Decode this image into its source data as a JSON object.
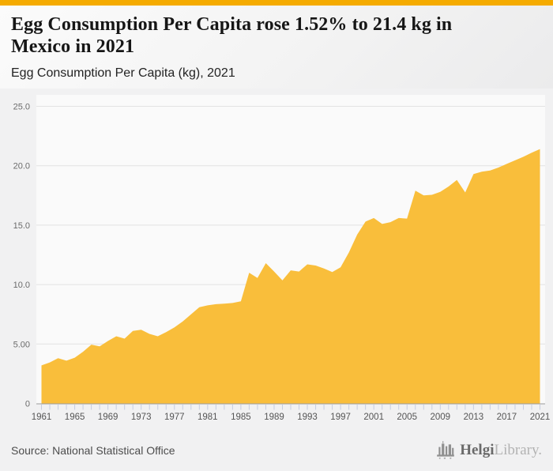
{
  "page": {
    "title": "Egg Consumption Per Capita rose 1.52% to 21.4 kg in\nMexico in 2021",
    "subtitle": "Egg Consumption Per Capita (kg), 2021",
    "source": "Source: National Statistical Office",
    "logo": {
      "name": "Helgi",
      "suffix": "Library."
    },
    "accent_color": "#f5ab00",
    "area_color": "#f9be3b",
    "grid_color": "#e2e2e2",
    "axis_color": "#9b9b9b",
    "tick_color": "#c6cde0"
  },
  "chart_data": {
    "type": "area",
    "title": "Egg Consumption Per Capita (kg), 2021",
    "xlabel": "",
    "ylabel": "",
    "ylim": [
      0,
      25
    ],
    "grid": true,
    "legend_position": "none",
    "x": [
      1961,
      1962,
      1963,
      1964,
      1965,
      1966,
      1967,
      1968,
      1969,
      1970,
      1971,
      1972,
      1973,
      1974,
      1975,
      1976,
      1977,
      1978,
      1979,
      1980,
      1981,
      1982,
      1983,
      1984,
      1985,
      1986,
      1987,
      1988,
      1989,
      1990,
      1991,
      1992,
      1993,
      1994,
      1995,
      1996,
      1997,
      1998,
      1999,
      2000,
      2001,
      2002,
      2003,
      2004,
      2005,
      2006,
      2007,
      2008,
      2009,
      2010,
      2011,
      2012,
      2013,
      2014,
      2015,
      2016,
      2017,
      2018,
      2019,
      2020,
      2021
    ],
    "values": [
      3.2,
      3.45,
      3.8,
      3.6,
      3.85,
      4.35,
      4.95,
      4.8,
      5.25,
      5.65,
      5.45,
      6.1,
      6.2,
      5.85,
      5.65,
      6.0,
      6.4,
      6.9,
      7.5,
      8.1,
      8.25,
      8.35,
      8.4,
      8.45,
      8.6,
      11.0,
      10.55,
      11.8,
      11.1,
      10.35,
      11.2,
      11.1,
      11.7,
      11.6,
      11.35,
      11.05,
      11.45,
      12.7,
      14.2,
      15.3,
      15.6,
      15.1,
      15.25,
      15.6,
      15.55,
      17.9,
      17.5,
      17.55,
      17.8,
      18.25,
      18.8,
      17.75,
      19.3,
      19.5,
      19.6,
      19.85,
      20.15,
      20.45,
      20.75,
      21.1,
      21.4
    ],
    "yticks": [
      0,
      5,
      10,
      15,
      20,
      25
    ],
    "ytick_labels": [
      "0",
      "5.00",
      "10.0",
      "15.0",
      "20.0",
      "25.0"
    ],
    "xtick_labels": [
      "1961",
      "1965",
      "1969",
      "1973",
      "1977",
      "1981",
      "1985",
      "1989",
      "1993",
      "1997",
      "2001",
      "2005",
      "2009",
      "2013",
      "2017",
      "2021"
    ]
  }
}
